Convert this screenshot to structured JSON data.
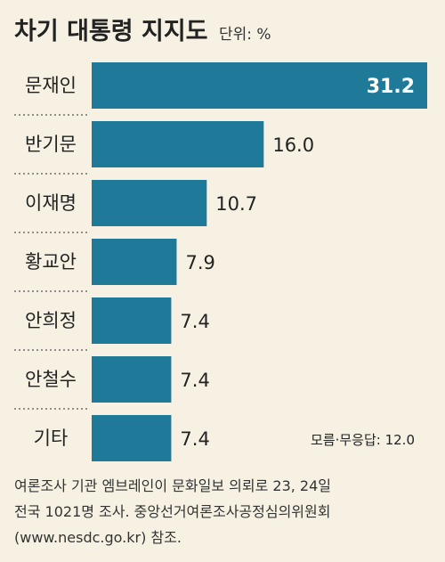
{
  "chart_data": {
    "type": "bar",
    "orientation": "horizontal",
    "title": "차기 대통령 지지도",
    "unit_label": "단위: %",
    "categories": [
      "문재인",
      "반기문",
      "이재명",
      "황교안",
      "안희정",
      "안철수",
      "기타"
    ],
    "values": [
      31.2,
      16.0,
      10.7,
      7.9,
      7.4,
      7.4,
      7.4
    ],
    "value_labels": [
      "31.2",
      "16.0",
      "10.7",
      "7.9",
      "7.4",
      "7.4",
      "7.4"
    ],
    "xlim": [
      0,
      31.2
    ],
    "grid": false,
    "bar_color": "#1f7a99",
    "annotation": "모름·무응답: 12.0",
    "source": [
      "여론조사 기관 엠브레인이 문화일보 의뢰로 23, 24일",
      "전국 1021명 조사. 중앙선거여론조사공정심의위원회",
      "(www.nesdc.go.kr) 참조."
    ]
  }
}
